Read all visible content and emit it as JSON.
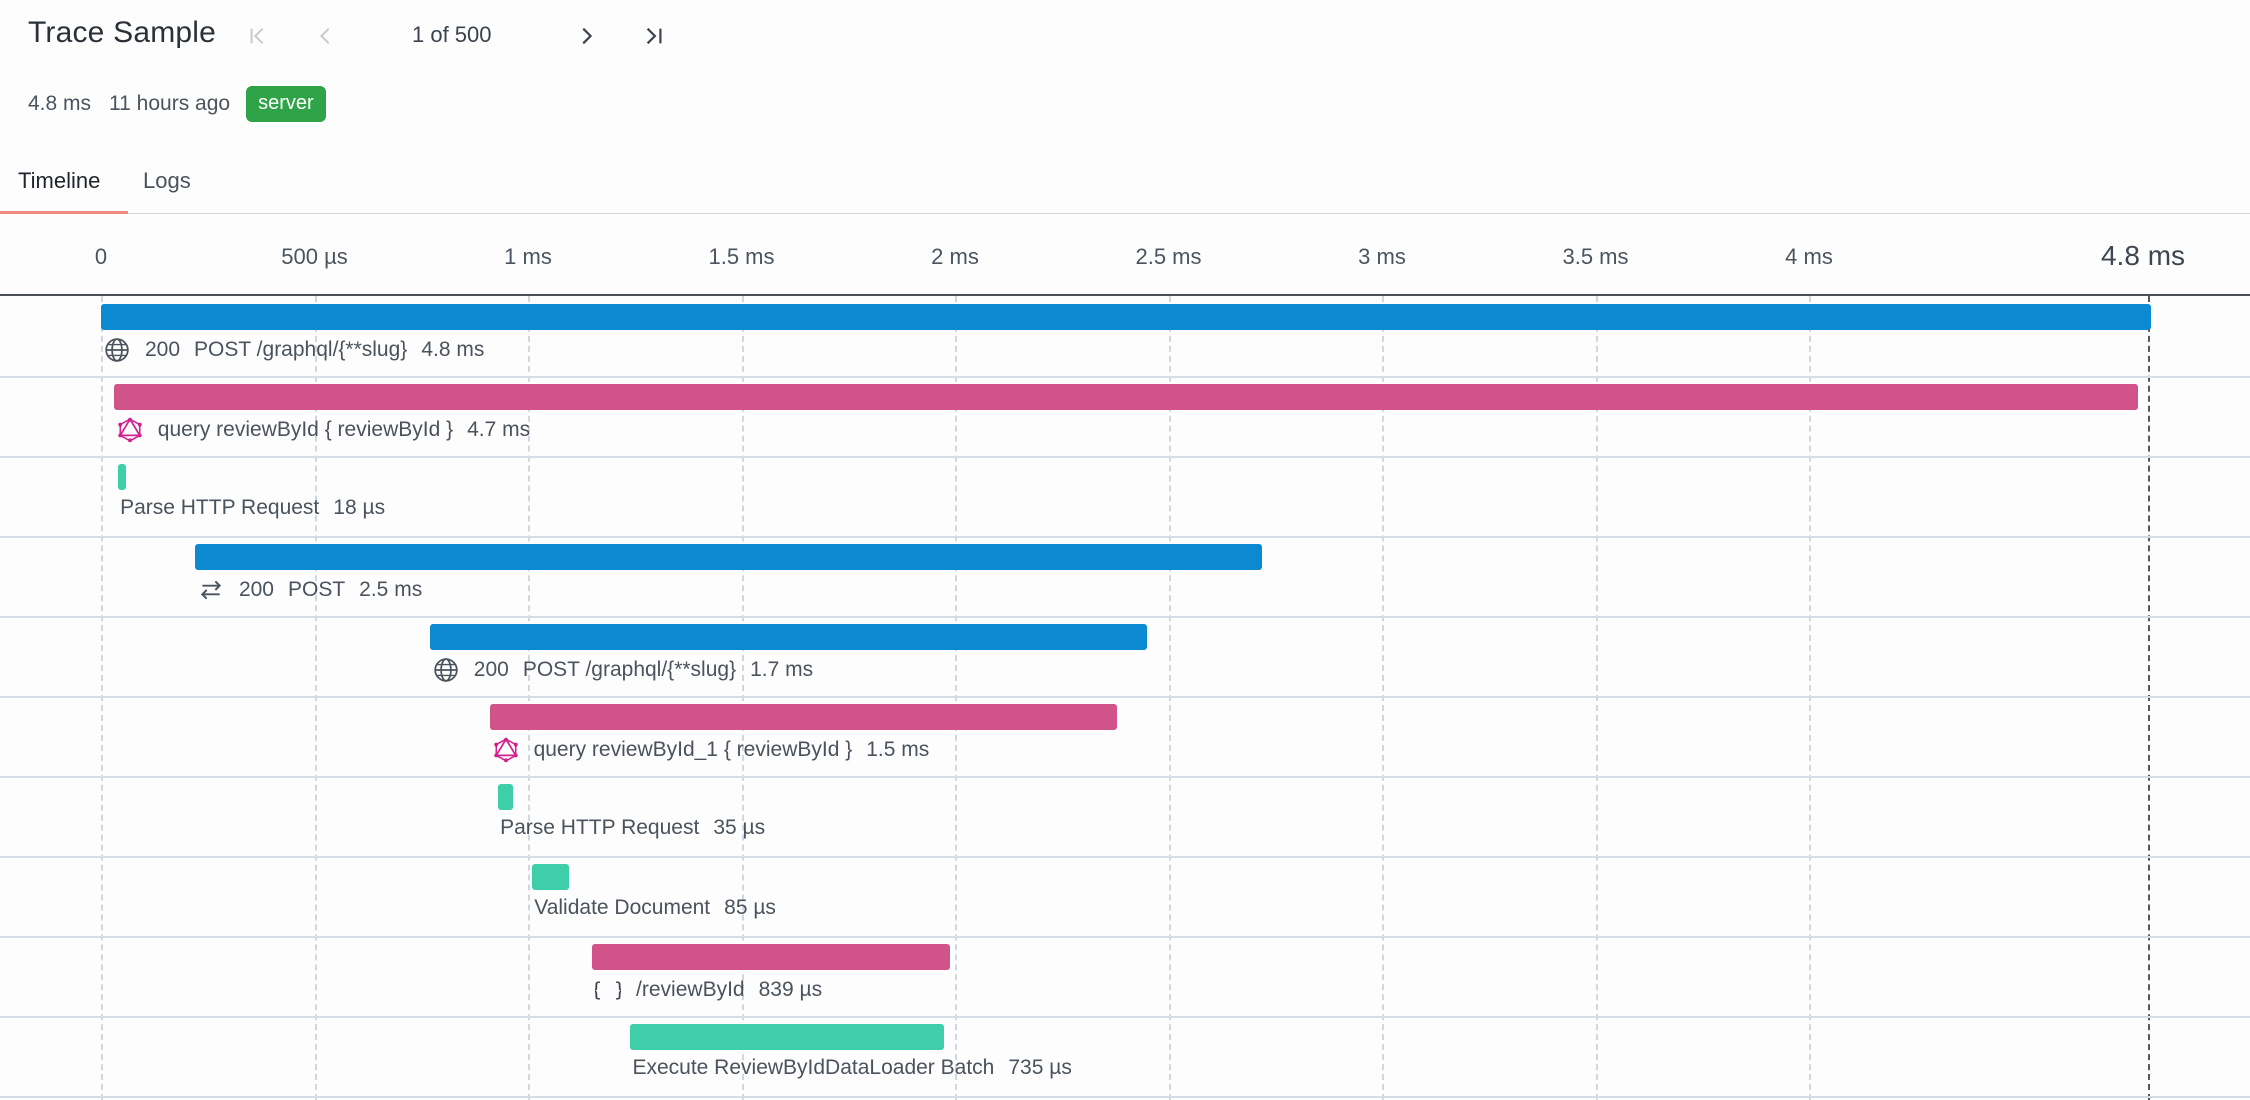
{
  "header": {
    "title": "Trace Sample",
    "pager": "1 of 500"
  },
  "meta": {
    "duration": "4.8 ms",
    "age": "11 hours ago",
    "badge": "server",
    "badge_color": "#2ea347"
  },
  "tabs": [
    {
      "label": "Timeline",
      "active": true
    },
    {
      "label": "Logs",
      "active": false
    }
  ],
  "ruler": {
    "ticks": [
      "0",
      "500 µs",
      "1 ms",
      "1.5 ms",
      "2 ms",
      "2.5 ms",
      "3 ms",
      "3.5 ms",
      "4 ms"
    ],
    "end_label": "4.8 ms"
  },
  "colors": {
    "http": "#0b8ad1",
    "graphql": "#d0538a",
    "operation": "#3ecfaa",
    "graphql_icon": "#d1218f"
  },
  "spans": [
    {
      "icon": "globe-icon",
      "status": "200",
      "name": "POST /graphql/{**slug}",
      "duration": "4.8 ms",
      "start_ms": 0.0,
      "duration_ms": 4.8,
      "kind": "http"
    },
    {
      "icon": "graphql-icon",
      "status": "",
      "name": "query reviewById { reviewById }",
      "duration": "4.7 ms",
      "start_ms": 0.03,
      "duration_ms": 4.74,
      "kind": "graphql"
    },
    {
      "icon": "",
      "status": "",
      "name": "Parse HTTP Request",
      "duration": "18 µs",
      "start_ms": 0.04,
      "duration_ms": 0.018,
      "kind": "operation"
    },
    {
      "icon": "exchange-icon",
      "status": "200",
      "name": "POST",
      "duration": "2.5 ms",
      "start_ms": 0.22,
      "duration_ms": 2.5,
      "kind": "http"
    },
    {
      "icon": "globe-icon",
      "status": "200",
      "name": "POST /graphql/{**slug}",
      "duration": "1.7 ms",
      "start_ms": 0.77,
      "duration_ms": 1.68,
      "kind": "http"
    },
    {
      "icon": "graphql-icon",
      "status": "",
      "name": "query reviewById_1 { reviewById }",
      "duration": "1.5 ms",
      "start_ms": 0.91,
      "duration_ms": 1.47,
      "kind": "graphql"
    },
    {
      "icon": "",
      "status": "",
      "name": "Parse HTTP Request",
      "duration": "35 µs",
      "start_ms": 0.93,
      "duration_ms": 0.035,
      "kind": "operation"
    },
    {
      "icon": "",
      "status": "",
      "name": "Validate Document",
      "duration": "85 µs",
      "start_ms": 1.01,
      "duration_ms": 0.085,
      "kind": "operation"
    },
    {
      "icon": "braces-icon",
      "status": "",
      "name": "/reviewById",
      "duration": "839 µs",
      "start_ms": 1.15,
      "duration_ms": 0.839,
      "kind": "graphql"
    },
    {
      "icon": "",
      "status": "",
      "name": "Execute ReviewByIdDataLoader Batch",
      "duration": "735 µs",
      "start_ms": 1.24,
      "duration_ms": 0.735,
      "kind": "operation"
    }
  ]
}
